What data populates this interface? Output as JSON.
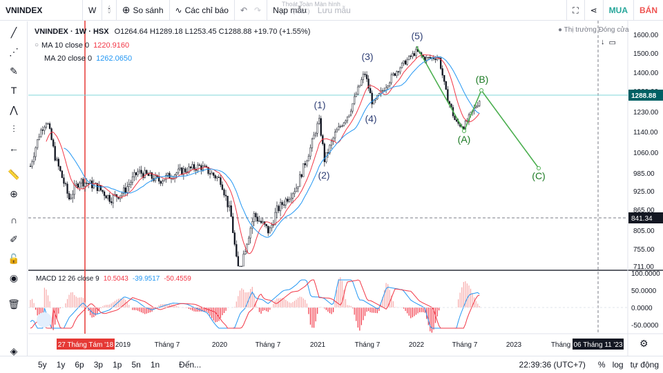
{
  "toolbar": {
    "symbol": "VNINDEX",
    "interval": "W",
    "compare_label": "So sánh",
    "indicators_label": "Các chỉ báo",
    "load_label": "Nạp mẫu",
    "save_label": "Lưu mẫu",
    "tooltip_line1": "Thoát Toàn Màn hình",
    "tooltip_line2": "(ESC)",
    "buy_label": "MUA",
    "sell_label": "BÁN"
  },
  "legend": {
    "title": "VNINDEX · 1W · HSX",
    "ohlc": "O1264.64 H1289.18 L1253.45 C1288.88 +19.70 (+1.55%)",
    "ma10_label": "MA 10 close 0",
    "ma10_value": "1220.9160",
    "ma20_label": "MA 20 close 0",
    "ma20_value": "1262.0650",
    "market_status": "● Thị trường Đóng cửa",
    "macd_label": "MACD 12 26 close 9",
    "macd_val1": "10.5043",
    "macd_val2": "-39.9517",
    "macd_val3": "-50.4559"
  },
  "price_axis": {
    "ticks": [
      "1600.00",
      "1500.00",
      "1400.00",
      "1320.00",
      "1230.00",
      "1140.00",
      "1060.00",
      "985.00",
      "925.00",
      "865.00",
      "805.00",
      "755.00",
      "711.00"
    ],
    "current_price": "1288.88",
    "crosshair_price": "841.34"
  },
  "macd_axis": {
    "ticks": [
      "100.0000",
      "50.0000",
      "0.0000",
      "-50.0000"
    ]
  },
  "time_axis": {
    "ticks": [
      "2019",
      "Tháng 7",
      "2020",
      "Tháng 7",
      "2021",
      "Tháng 7",
      "2022",
      "Tháng 7",
      "2023",
      "Tháng"
    ],
    "start_label": "27 Tháng Tám '18",
    "end_label": "06 Tháng 11 '23"
  },
  "elliott_labels": [
    "(1)",
    "(2)",
    "(3)",
    "(4)",
    "(5)",
    "(A)",
    "(B)",
    "(C)"
  ],
  "bottom": {
    "ranges": [
      "5y",
      "1y",
      "6p",
      "3p",
      "1p",
      "5n",
      "1n"
    ],
    "goto": "Đến...",
    "clock": "22:39:36 (UTC+7)",
    "percent": "%",
    "log": "log",
    "auto": "tự động"
  },
  "colors": {
    "ma10": "#f23645",
    "ma20": "#2196f3",
    "candles": "#131722",
    "wave_impulse": "#2f3f75",
    "wave_corrective": "#1b7a23",
    "projection": "#4caf50",
    "current_price_line": "#7fd4d8",
    "date_marker": "#e53935"
  }
}
